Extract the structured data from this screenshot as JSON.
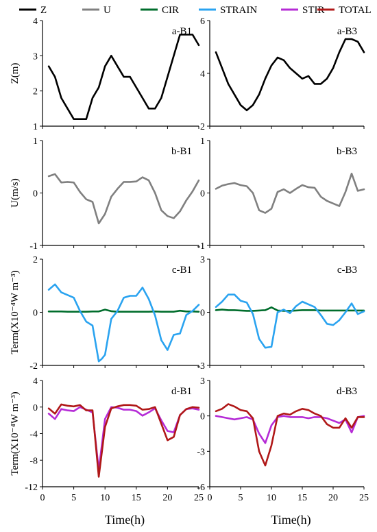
{
  "legend": [
    {
      "name": "Z",
      "color": "#000000"
    },
    {
      "name": "U",
      "color": "#808080"
    },
    {
      "name": "CIR",
      "color": "#006d2c"
    },
    {
      "name": "STRAIN",
      "color": "#2aa3f0"
    },
    {
      "name": "STIR",
      "color": "#b52bd6"
    },
    {
      "name": "TOTAL",
      "color": "#b01818"
    }
  ],
  "xlabel": "Time(h)",
  "chart_data": [
    {
      "type": "line",
      "title": "a-B1",
      "ylabel": "Z(m)",
      "ylim": [
        1,
        4
      ],
      "yticks": [
        1,
        2,
        3,
        4
      ],
      "xlim": [
        0,
        25
      ],
      "xticks": [
        0,
        5,
        10,
        15,
        20,
        25
      ],
      "series": [
        {
          "name": "Z",
          "x": [
            1,
            2,
            3,
            4,
            5,
            6,
            7,
            8,
            9,
            10,
            11,
            12,
            13,
            14,
            15,
            16,
            17,
            18,
            19,
            20,
            21,
            22,
            23,
            24,
            25
          ],
          "values": [
            2.7,
            2.4,
            1.8,
            1.5,
            1.2,
            1.2,
            1.2,
            1.8,
            2.1,
            2.7,
            3.0,
            2.7,
            2.4,
            2.4,
            2.1,
            1.8,
            1.5,
            1.5,
            1.8,
            2.4,
            3.0,
            3.6,
            3.6,
            3.6,
            3.3
          ]
        }
      ]
    },
    {
      "type": "line",
      "title": "a-B3",
      "ylabel": "",
      "ylim": [
        2,
        6
      ],
      "yticks": [
        2,
        4,
        6
      ],
      "xlim": [
        0,
        25
      ],
      "xticks": [
        0,
        5,
        10,
        15,
        20,
        25
      ],
      "series": [
        {
          "name": "Z",
          "x": [
            1,
            2,
            3,
            4,
            5,
            6,
            7,
            8,
            9,
            10,
            11,
            12,
            13,
            14,
            15,
            16,
            17,
            18,
            19,
            20,
            21,
            22,
            23,
            24,
            25
          ],
          "values": [
            4.8,
            4.2,
            3.6,
            3.2,
            2.8,
            2.6,
            2.8,
            3.2,
            3.8,
            4.3,
            4.6,
            4.5,
            4.2,
            4.0,
            3.8,
            3.9,
            3.6,
            3.6,
            3.8,
            4.2,
            4.8,
            5.3,
            5.3,
            5.2,
            4.8
          ]
        }
      ]
    },
    {
      "type": "line",
      "title": "b-B1",
      "ylabel": "U(m/s)",
      "ylim": [
        -1,
        1
      ],
      "yticks": [
        -1,
        0,
        1
      ],
      "xlim": [
        0,
        25
      ],
      "xticks": [
        0,
        5,
        10,
        15,
        20,
        25
      ],
      "series": [
        {
          "name": "U",
          "x": [
            1,
            2,
            3,
            4,
            5,
            6,
            7,
            8,
            9,
            10,
            11,
            12,
            13,
            14,
            15,
            16,
            17,
            18,
            19,
            20,
            21,
            22,
            23,
            24,
            25
          ],
          "values": [
            0.32,
            0.36,
            0.2,
            0.21,
            0.2,
            0.02,
            -0.12,
            -0.17,
            -0.58,
            -0.4,
            -0.07,
            0.08,
            0.21,
            0.21,
            0.22,
            0.3,
            0.24,
            0.0,
            -0.33,
            -0.44,
            -0.48,
            -0.35,
            -0.14,
            0.03,
            0.24
          ]
        }
      ]
    },
    {
      "type": "line",
      "title": "b-B3",
      "ylabel": "",
      "ylim": [
        -1,
        1
      ],
      "yticks": [
        -1,
        0,
        1
      ],
      "xlim": [
        0,
        25
      ],
      "xticks": [
        0,
        5,
        10,
        15,
        20,
        25
      ],
      "series": [
        {
          "name": "U",
          "x": [
            1,
            2,
            3,
            4,
            5,
            6,
            7,
            8,
            9,
            10,
            11,
            12,
            13,
            14,
            15,
            16,
            17,
            18,
            19,
            20,
            21,
            22,
            23,
            24,
            25
          ],
          "values": [
            0.08,
            0.14,
            0.17,
            0.19,
            0.15,
            0.13,
            0.0,
            -0.33,
            -0.38,
            -0.3,
            0.02,
            0.07,
            0.0,
            0.08,
            0.15,
            0.11,
            0.1,
            -0.07,
            -0.15,
            -0.2,
            -0.25,
            0.02,
            0.37,
            0.04,
            0.07
          ]
        }
      ]
    },
    {
      "type": "line",
      "title": "c-B1",
      "ylabel": "Term(X10⁻⁴W m⁻³)",
      "ylim": [
        -2,
        2
      ],
      "yticks": [
        -2,
        0,
        2
      ],
      "xlim": [
        0,
        25
      ],
      "xticks": [
        0,
        5,
        10,
        15,
        20,
        25
      ],
      "series": [
        {
          "name": "CIR",
          "x": [
            1,
            2,
            3,
            4,
            5,
            6,
            7,
            8,
            9,
            10,
            11,
            12,
            13,
            14,
            15,
            16,
            17,
            18,
            19,
            20,
            21,
            22,
            23,
            24,
            25
          ],
          "values": [
            0.03,
            0.03,
            0.03,
            0.02,
            0.02,
            0.02,
            0.02,
            0.03,
            0.03,
            0.1,
            0.04,
            0.02,
            0.02,
            0.02,
            0.02,
            0.02,
            0.02,
            0.03,
            0.02,
            0.02,
            0.02,
            0.06,
            0.03,
            0.03,
            0.02
          ]
        },
        {
          "name": "STRAIN",
          "x": [
            1,
            2,
            3,
            4,
            5,
            6,
            7,
            8,
            9,
            9.5,
            10,
            11,
            12,
            13,
            14,
            15,
            16,
            17,
            18,
            19,
            20,
            21,
            22,
            23,
            24,
            25
          ],
          "values": [
            0.85,
            1.05,
            0.75,
            0.65,
            0.55,
            0.05,
            -0.35,
            -0.5,
            -1.85,
            -1.75,
            -1.6,
            -0.25,
            0.05,
            0.55,
            0.62,
            0.62,
            0.93,
            0.5,
            -0.12,
            -1.05,
            -1.42,
            -0.85,
            -0.8,
            -0.1,
            0.05,
            0.28
          ]
        }
      ]
    },
    {
      "type": "line",
      "title": "c-B3",
      "ylabel": "",
      "ylim": [
        -3,
        3
      ],
      "yticks": [
        -3,
        0,
        3
      ],
      "xlim": [
        0,
        25
      ],
      "xticks": [
        0,
        5,
        10,
        15,
        20,
        25
      ],
      "series": [
        {
          "name": "CIR",
          "x": [
            1,
            2,
            3,
            4,
            5,
            6,
            7,
            8,
            9,
            10,
            11,
            12,
            13,
            14,
            15,
            16,
            17,
            18,
            19,
            20,
            21,
            22,
            23,
            24,
            25
          ],
          "values": [
            0.12,
            0.15,
            0.12,
            0.12,
            0.1,
            0.08,
            0.08,
            0.1,
            0.12,
            0.28,
            0.1,
            0.08,
            0.08,
            0.1,
            0.12,
            0.12,
            0.12,
            0.1,
            0.1,
            0.1,
            0.1,
            0.1,
            0.1,
            0.1,
            0.1
          ]
        },
        {
          "name": "STRAIN",
          "x": [
            1,
            2,
            3,
            4,
            5,
            6,
            7,
            8,
            9,
            10,
            11,
            12,
            13,
            14,
            15,
            16,
            17,
            18,
            19,
            20,
            21,
            22,
            23,
            24,
            25
          ],
          "values": [
            0.3,
            0.6,
            1.0,
            1.0,
            0.65,
            0.55,
            -0.1,
            -1.5,
            -2.0,
            -1.95,
            0.0,
            0.15,
            -0.05,
            0.35,
            0.6,
            0.45,
            0.3,
            -0.15,
            -0.65,
            -0.72,
            -0.45,
            0.0,
            0.5,
            -0.1,
            0.05
          ]
        }
      ]
    },
    {
      "type": "line",
      "title": "d-B1",
      "ylabel": "Term(X10⁻⁴W m⁻³)",
      "ylim": [
        -12,
        4
      ],
      "yticks": [
        -12,
        -8,
        -4,
        0,
        4
      ],
      "xlim": [
        0,
        25
      ],
      "xticks": [
        0,
        5,
        10,
        15,
        20,
        25
      ],
      "series": [
        {
          "name": "STIR",
          "x": [
            1,
            2,
            3,
            4,
            5,
            6,
            7,
            8,
            9,
            10,
            11,
            12,
            13,
            14,
            15,
            16,
            17,
            18,
            19,
            20,
            21,
            22,
            23,
            24,
            25
          ],
          "values": [
            -1.0,
            -1.8,
            -0.3,
            -0.5,
            -0.6,
            0.0,
            -0.4,
            -0.8,
            -9.5,
            -1.8,
            0.0,
            -0.1,
            -0.4,
            -0.4,
            -0.6,
            -1.3,
            -0.8,
            -0.2,
            -2.0,
            -3.6,
            -3.8,
            -1.2,
            -0.3,
            -0.2,
            -0.4
          ]
        },
        {
          "name": "TOTAL",
          "x": [
            1,
            2,
            3,
            4,
            5,
            6,
            7,
            8,
            9,
            10,
            11,
            12,
            13,
            14,
            15,
            16,
            17,
            18,
            19,
            20,
            21,
            22,
            23,
            24,
            25
          ],
          "values": [
            -0.2,
            -1.0,
            0.4,
            0.2,
            0.1,
            0.3,
            -0.5,
            -0.5,
            -10.5,
            -3.0,
            -0.2,
            0.1,
            0.3,
            0.3,
            0.2,
            -0.4,
            -0.3,
            0.0,
            -2.5,
            -5.0,
            -4.5,
            -1.2,
            -0.3,
            0.0,
            -0.1
          ]
        }
      ]
    },
    {
      "type": "line",
      "title": "d-B3",
      "ylabel": "",
      "ylim": [
        -6,
        3
      ],
      "yticks": [
        -6,
        -3,
        0,
        3
      ],
      "xlim": [
        0,
        25
      ],
      "xticks": [
        0,
        5,
        10,
        15,
        20,
        25
      ],
      "series": [
        {
          "name": "STIR",
          "x": [
            1,
            2,
            3,
            4,
            5,
            6,
            7,
            8,
            9,
            10,
            11,
            12,
            13,
            14,
            15,
            16,
            17,
            18,
            19,
            20,
            21,
            22,
            23,
            24,
            25
          ],
          "values": [
            0.0,
            -0.1,
            -0.2,
            -0.3,
            -0.2,
            -0.1,
            -0.3,
            -1.5,
            -2.3,
            -0.8,
            -0.1,
            0.0,
            -0.1,
            -0.1,
            -0.1,
            -0.2,
            -0.1,
            -0.1,
            -0.2,
            -0.4,
            -0.6,
            -0.3,
            -1.4,
            -0.1,
            0.0
          ]
        },
        {
          "name": "TOTAL",
          "x": [
            1,
            2,
            3,
            4,
            5,
            6,
            7,
            8,
            9,
            10,
            11,
            12,
            13,
            14,
            15,
            16,
            17,
            18,
            19,
            20,
            21,
            22,
            23,
            24,
            25
          ],
          "values": [
            0.4,
            0.6,
            1.0,
            0.8,
            0.5,
            0.4,
            -0.2,
            -3.0,
            -4.2,
            -2.5,
            0.0,
            0.2,
            0.1,
            0.4,
            0.6,
            0.5,
            0.2,
            0.0,
            -0.7,
            -1.0,
            -1.0,
            -0.2,
            -1.0,
            -0.1,
            -0.1
          ]
        }
      ]
    }
  ]
}
